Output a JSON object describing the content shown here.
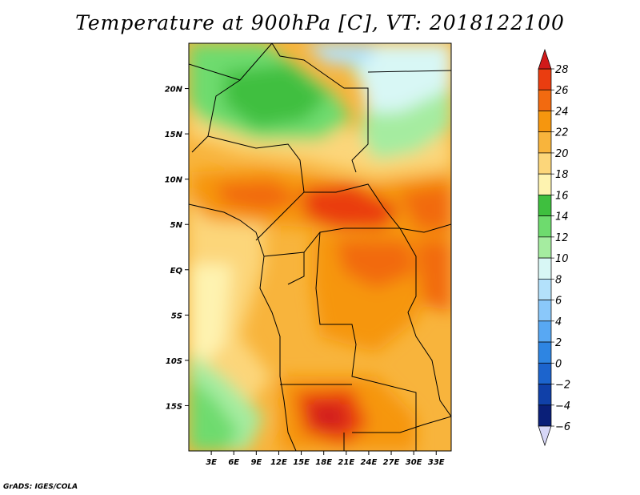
{
  "title": "Temperature at 900hPa [C], VT: 2018122100",
  "credit": "GrADS: IGES/COLA",
  "chart_data": {
    "type": "heatmap",
    "title": "Temperature at 900hPa [C], VT: 2018122100",
    "variable": "Temperature at 900hPa",
    "units": "C",
    "valid_time": "2018122100",
    "xlabel": "",
    "ylabel": "",
    "x_ticks": [
      "3E",
      "6E",
      "9E",
      "12E",
      "15E",
      "18E",
      "21E",
      "24E",
      "27E",
      "30E",
      "33E"
    ],
    "y_ticks": [
      "20N",
      "15N",
      "10N",
      "5N",
      "EQ",
      "5S",
      "10S",
      "15S"
    ],
    "lon_range": [
      0,
      35
    ],
    "lat_range": [
      -20,
      25
    ],
    "colorbar": {
      "levels": [
        28,
        26,
        24,
        22,
        20,
        18,
        16,
        14,
        12,
        10,
        8,
        6,
        4,
        2,
        0,
        -2,
        -4,
        -6
      ],
      "colors": [
        "#d11a1a",
        "#ea3d10",
        "#f26a10",
        "#f6960e",
        "#f8b43c",
        "#fcd67a",
        "#fef3b0",
        "#3fbf3f",
        "#6edb6e",
        "#a5eca0",
        "#d8f7f5",
        "#b3e1fb",
        "#8ac8fa",
        "#58a8f3",
        "#2e85e2",
        "#1c64cd",
        "#1040a8",
        "#0a1f78"
      ],
      "under_color": "#d7d7f7",
      "over_color": "#d11a1a"
    },
    "grid": false
  }
}
